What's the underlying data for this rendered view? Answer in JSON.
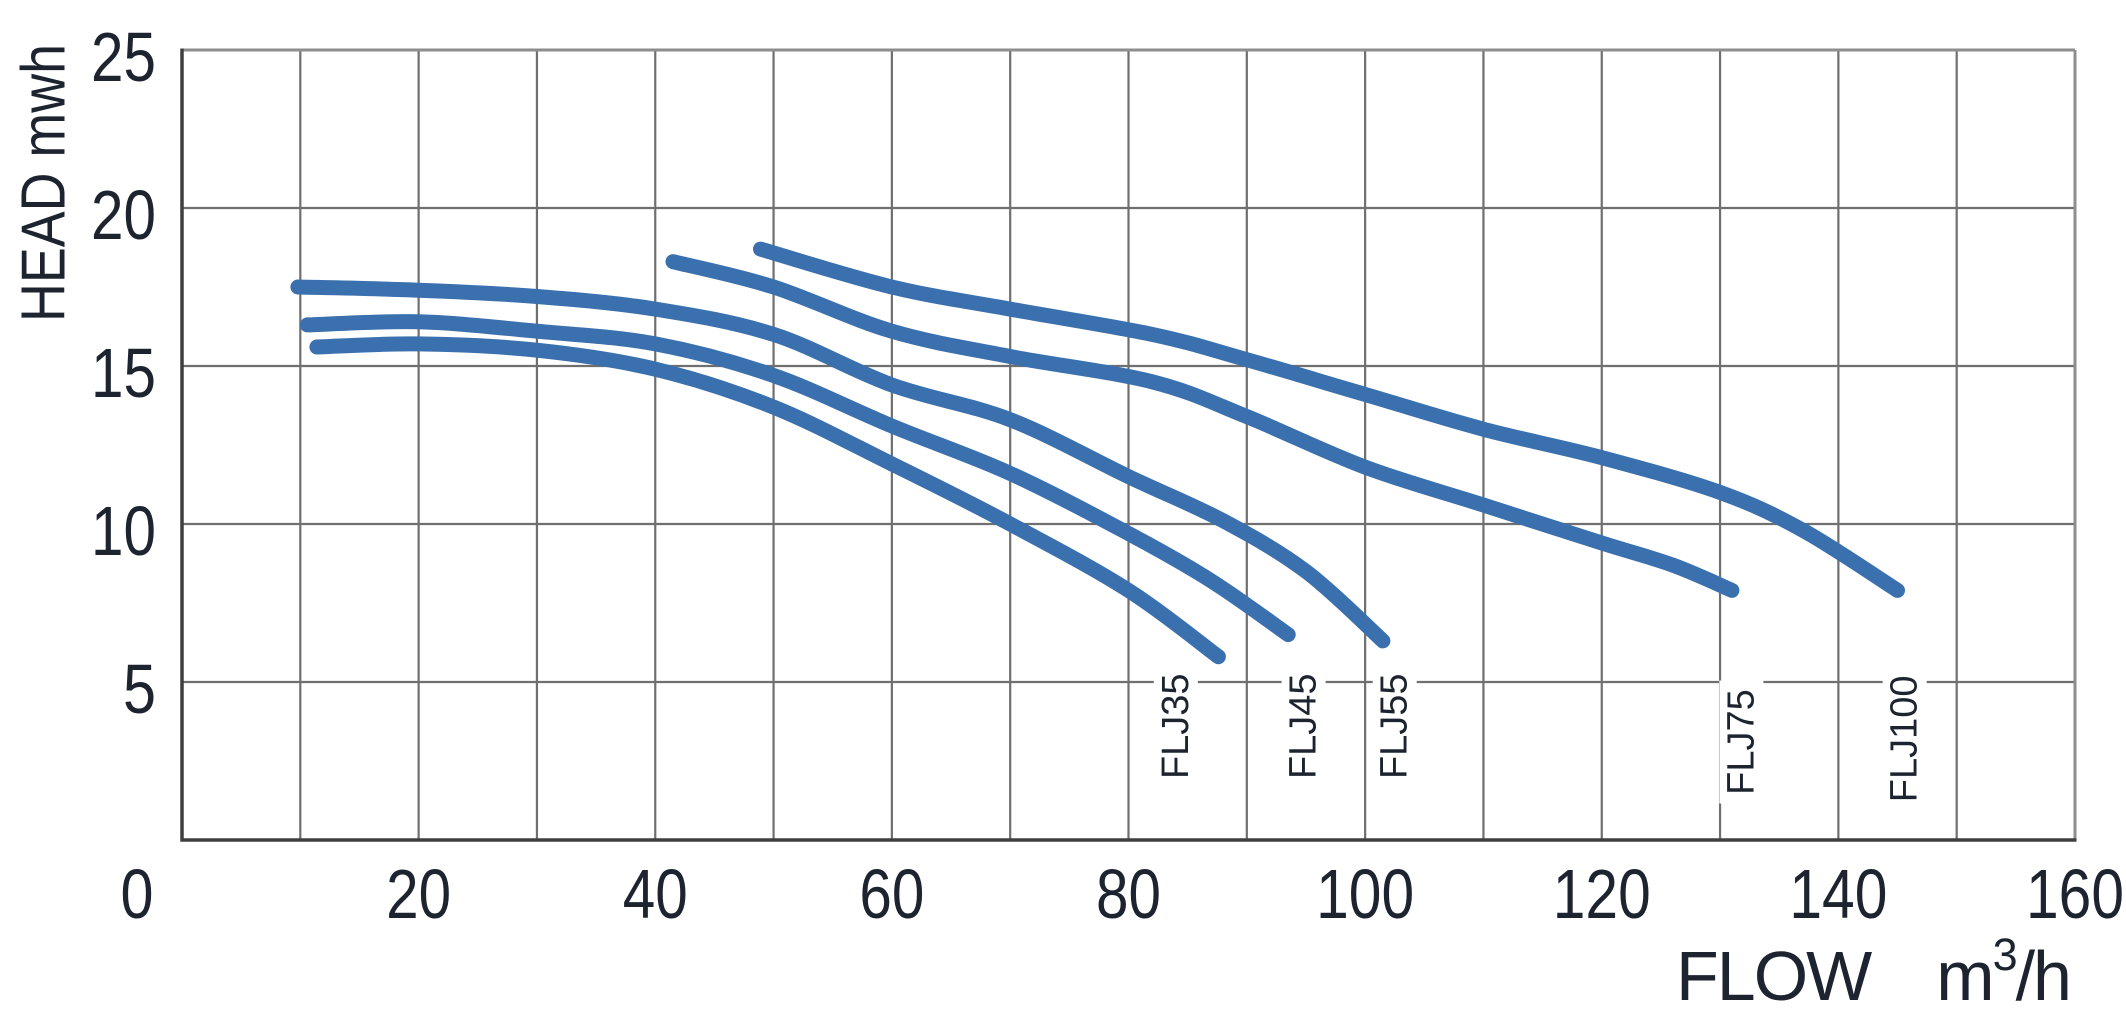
{
  "chart_data": {
    "type": "line",
    "title": "",
    "xlabel": "FLOW m³/h",
    "ylabel": "HEAD mwh",
    "grid": true,
    "legend_position": "inline-curve-labels",
    "x_axis": {
      "min": 0,
      "max": 160,
      "ticks": [
        0,
        20,
        40,
        60,
        80,
        100,
        120,
        140,
        160
      ],
      "grid_step": 10,
      "title": {
        "main": "FLOW",
        "unit_base": "m",
        "unit_exponent": "3",
        "unit_suffix": "/h"
      }
    },
    "y_axis": {
      "min": 0,
      "max": 25,
      "ticks": [
        5,
        10,
        15,
        20,
        25
      ],
      "grid_step": 5,
      "title": "HEAD mwh"
    },
    "curve_color": "#3b70af",
    "series": [
      {
        "name": "FLJ35",
        "points": [
          [
            11.4,
            15.6
          ],
          [
            20,
            15.7
          ],
          [
            30,
            15.5
          ],
          [
            40,
            14.9
          ],
          [
            50,
            13.7
          ],
          [
            60,
            11.9
          ],
          [
            70,
            10.0
          ],
          [
            80,
            7.9
          ],
          [
            87.6,
            5.8
          ]
        ],
        "label": {
          "x": 84.0,
          "y": 3.6
        }
      },
      {
        "name": "FLJ45",
        "points": [
          [
            10.6,
            16.3
          ],
          [
            20,
            16.4
          ],
          [
            30,
            16.1
          ],
          [
            40,
            15.7
          ],
          [
            50,
            14.7
          ],
          [
            60,
            13.1
          ],
          [
            70,
            11.6
          ],
          [
            80,
            9.7
          ],
          [
            87,
            8.2
          ],
          [
            93.5,
            6.5
          ]
        ],
        "label": {
          "x": 94.8,
          "y": 3.6
        }
      },
      {
        "name": "FLJ55",
        "points": [
          [
            9.8,
            17.5
          ],
          [
            20,
            17.4
          ],
          [
            30,
            17.2
          ],
          [
            40,
            16.8
          ],
          [
            50,
            16.0
          ],
          [
            60,
            14.4
          ],
          [
            70,
            13.3
          ],
          [
            80,
            11.5
          ],
          [
            88,
            10.1
          ],
          [
            95,
            8.5
          ],
          [
            101.5,
            6.3
          ]
        ],
        "label": {
          "x": 102.5,
          "y": 3.6
        }
      },
      {
        "name": "FLJ75",
        "points": [
          [
            41.5,
            18.3
          ],
          [
            50,
            17.5
          ],
          [
            60,
            16.1
          ],
          [
            70,
            15.3
          ],
          [
            82,
            14.5
          ],
          [
            90,
            13.4
          ],
          [
            100,
            11.8
          ],
          [
            110,
            10.6
          ],
          [
            120,
            9.4
          ],
          [
            126,
            8.7
          ],
          [
            131,
            7.9
          ]
        ],
        "label": {
          "x": 131.8,
          "y": 3.1
        }
      },
      {
        "name": "FLJ100",
        "points": [
          [
            48.9,
            18.7
          ],
          [
            60,
            17.5
          ],
          [
            70,
            16.8
          ],
          [
            82,
            16.0
          ],
          [
            90,
            15.2
          ],
          [
            100,
            14.1
          ],
          [
            110,
            13.0
          ],
          [
            120,
            12.1
          ],
          [
            130,
            11.0
          ],
          [
            137,
            9.8
          ],
          [
            145,
            7.9
          ]
        ],
        "label": {
          "x": 145.6,
          "y": 3.2
        }
      }
    ],
    "styles": {
      "text_color": "#1d2430",
      "grid_color": "#6f6f6f",
      "border_color": "#8e8e8e",
      "axis_color": "#3f3f3f",
      "background": "#ffffff"
    }
  }
}
